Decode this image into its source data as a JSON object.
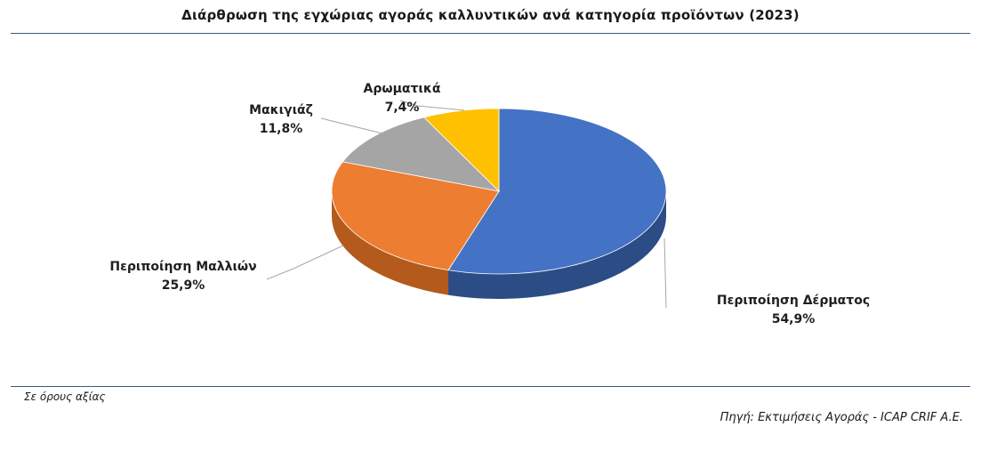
{
  "title": "Διάρθρωση της εγχώριας αγοράς καλλυντικών ανά κατηγορία προϊόντων (2023)",
  "note": "Σε όρους αξίας",
  "source": "Πηγή: Εκτιμήσεις Αγοράς - ICAP CRIF A.E.",
  "chart_data": {
    "type": "pie",
    "title": "Διάρθρωση της εγχώριας αγοράς καλλυντικών ανά κατηγορία προϊόντων (2023)",
    "categories": [
      "Περιποίηση Δέρματος",
      "Περιποίηση Μαλλιών",
      "Μακιγιάζ",
      "Αρωματικά"
    ],
    "values": [
      54.9,
      25.9,
      11.8,
      7.4
    ],
    "value_labels": [
      "54,9%",
      "25,9%",
      "11,8%",
      "7,4%"
    ],
    "colors": [
      "#4472C4",
      "#ED7D31",
      "#A5A5A5",
      "#FFC000"
    ],
    "side_colors": [
      "#2C4C86",
      "#B45A1C",
      "#7A7A7A",
      "#C79500"
    ],
    "style": "3d"
  }
}
